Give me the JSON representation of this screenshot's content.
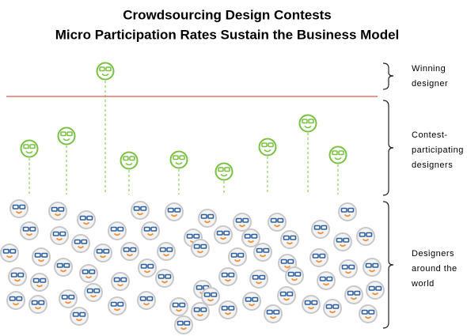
{
  "header": {
    "title": "Crowdsourcing Design Contests",
    "subtitle": "Micro Participation Rates Sustain the Business Model"
  },
  "labels": [
    {
      "lines": [
        "Winning",
        "designer"
      ]
    },
    {
      "lines": [
        "Contest-",
        "participating",
        "designers"
      ]
    },
    {
      "lines": [
        "Designers",
        "around the",
        "world"
      ]
    }
  ]
}
